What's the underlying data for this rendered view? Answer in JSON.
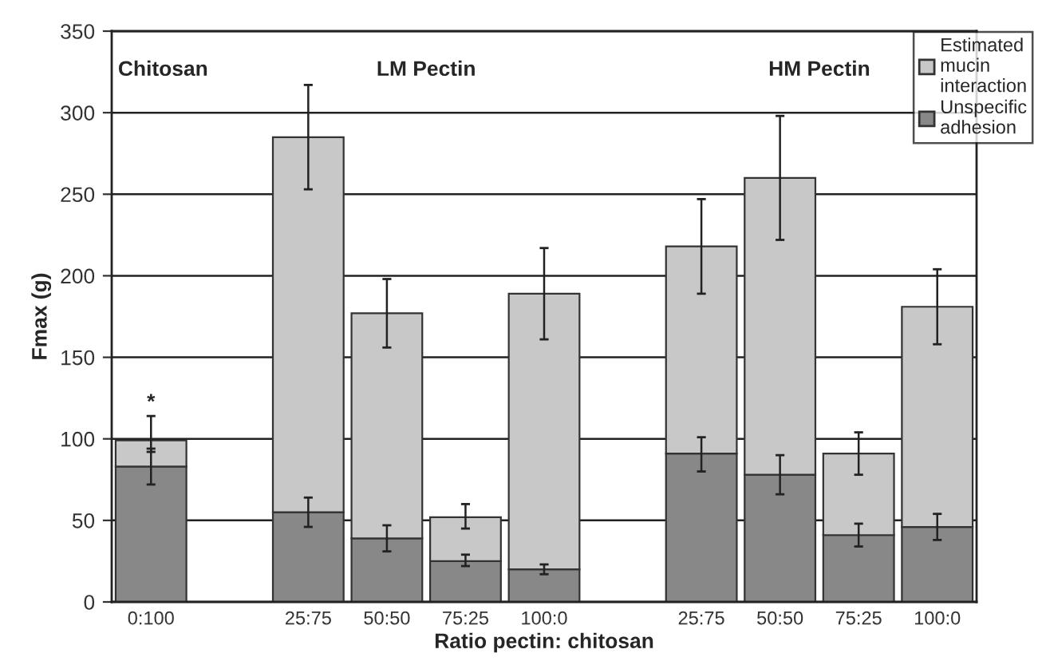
{
  "chart_data": {
    "type": "bar",
    "stacked": true,
    "xlabel": "Ratio pectin: chitosan",
    "ylabel": "Fmax (g)",
    "categories": [
      "0:100",
      null,
      "25:75",
      "50:50",
      "75:25",
      "100:0",
      null,
      "25:75",
      "50:50",
      "75:25",
      "100:0"
    ],
    "series": [
      {
        "name": "Unspecific adhesion",
        "color": "#888888",
        "values": [
          83,
          null,
          55,
          39,
          25,
          20,
          null,
          91,
          78,
          41,
          46
        ],
        "errors": [
          [
            72,
            94
          ],
          null,
          [
            46,
            64
          ],
          [
            31,
            47
          ],
          [
            22,
            29
          ],
          [
            17,
            23
          ],
          null,
          [
            80,
            101
          ],
          [
            66,
            90
          ],
          [
            34,
            48
          ],
          [
            38,
            54
          ]
        ]
      },
      {
        "name": "Estimated mucin interaction",
        "color": "#c8c8c8",
        "values": [
          16,
          null,
          230,
          138,
          27,
          169,
          null,
          127,
          182,
          50,
          135
        ],
        "errors": [
          [
            92,
            114
          ],
          null,
          [
            253,
            317
          ],
          [
            156,
            198
          ],
          [
            45,
            60
          ],
          [
            161,
            217
          ],
          null,
          [
            189,
            247
          ],
          [
            222,
            298
          ],
          [
            78,
            104
          ],
          [
            158,
            204
          ]
        ]
      }
    ],
    "ylim": [
      0,
      350
    ],
    "yticks": [
      0,
      50,
      100,
      150,
      200,
      250,
      300,
      350
    ],
    "grid": "y",
    "legend": "top right",
    "annotations": [
      "Chitosan",
      "LM Pectin",
      "HM Pectin",
      "*"
    ]
  }
}
